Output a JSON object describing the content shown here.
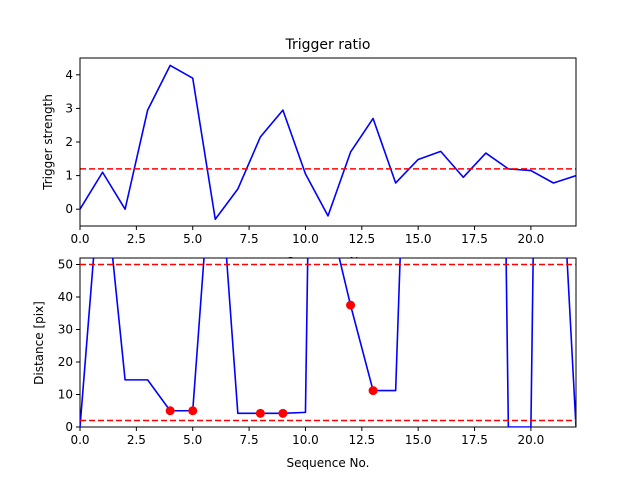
{
  "chart_data": [
    {
      "type": "line",
      "title": "Trigger ratio",
      "xlabel": "Sequence No.",
      "ylabel": "Trigger strength",
      "xlim": [
        0,
        22
      ],
      "ylim": [
        -0.5,
        4.5
      ],
      "xticks": [
        0,
        2.5,
        5,
        7.5,
        10,
        12.5,
        15,
        17.5,
        20
      ],
      "xtick_labels": [
        "0.0",
        "2.5",
        "5.0",
        "7.5",
        "10.0",
        "12.5",
        "15.0",
        "17.5",
        "20.0"
      ],
      "yticks": [
        0,
        1,
        2,
        3,
        4
      ],
      "ytick_labels": [
        "0",
        "1",
        "2",
        "3",
        "4"
      ],
      "series": [
        {
          "color": "#0000ff",
          "x": [
            0,
            1,
            2,
            3,
            4,
            5,
            6,
            7,
            8,
            9,
            10,
            11,
            12,
            13,
            14,
            15,
            16,
            17,
            18,
            19,
            20,
            21,
            22
          ],
          "y": [
            0.0,
            1.1,
            0.0,
            2.95,
            4.28,
            3.9,
            -0.3,
            0.6,
            2.15,
            2.95,
            1.05,
            -0.2,
            1.7,
            2.7,
            0.78,
            1.48,
            1.72,
            0.95,
            1.67,
            1.2,
            1.15,
            0.78,
            1.0
          ]
        }
      ],
      "hlines": [
        {
          "y": 1.2,
          "color": "#ff0000",
          "style": "dashed"
        }
      ],
      "grid": false
    },
    {
      "type": "line",
      "title": "",
      "xlabel": "Sequence No.",
      "ylabel": "Distance [pix]",
      "xlim": [
        0,
        22
      ],
      "ylim": [
        0,
        52
      ],
      "xticks": [
        0,
        2.5,
        5,
        7.5,
        10,
        12.5,
        15,
        17.5,
        20
      ],
      "xtick_labels": [
        "0.0",
        "2.5",
        "5.0",
        "7.5",
        "10.0",
        "12.5",
        "15.0",
        "17.5",
        "20.0"
      ],
      "yticks": [
        0,
        10,
        20,
        30,
        40,
        50
      ],
      "ytick_labels": [
        "0",
        "10",
        "20",
        "30",
        "40",
        "50"
      ],
      "series": [
        {
          "color": "#0000ff",
          "x": [
            0,
            0.6,
            1.0,
            1.45,
            2,
            3,
            4,
            5,
            5.5,
            6.0,
            6.5,
            7,
            8,
            9,
            10,
            10.1,
            10.5,
            11.0,
            11.5,
            12,
            13,
            14,
            14.2,
            14.8,
            18.0,
            18.9,
            19,
            20,
            20.1,
            20.5,
            21.0,
            21.6,
            22.0
          ],
          "y": [
            0,
            52,
            60,
            52,
            14.5,
            14.5,
            5,
            5,
            52,
            60,
            52,
            4.2,
            4.2,
            4.2,
            4.5,
            52,
            60,
            60,
            52,
            37.5,
            11.2,
            11.2,
            52,
            60,
            60,
            52,
            0,
            0,
            52,
            60,
            60,
            52,
            0
          ]
        }
      ],
      "markers": {
        "color": "#ff0000",
        "x": [
          4,
          5,
          8,
          9,
          12,
          13
        ],
        "y": [
          5,
          5,
          4.2,
          4.2,
          37.5,
          11.2
        ]
      },
      "hlines": [
        {
          "y": 50,
          "color": "#ff0000",
          "style": "dashed"
        },
        {
          "y": 2,
          "color": "#ff0000",
          "style": "dashed"
        }
      ],
      "grid": false
    }
  ]
}
